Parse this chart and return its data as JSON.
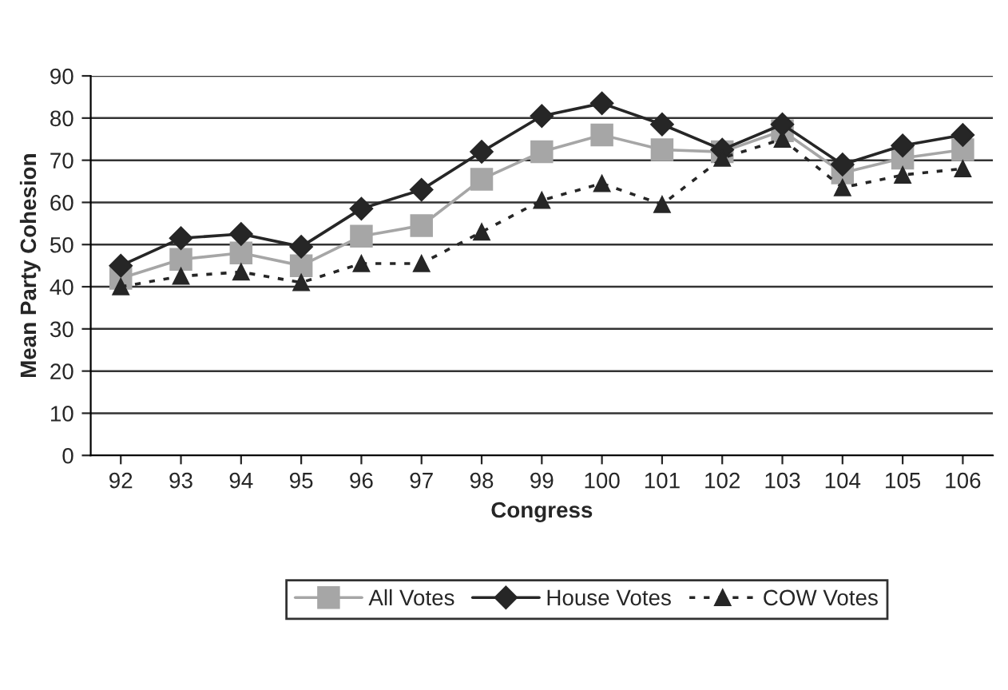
{
  "chart_data": {
    "type": "line",
    "xlabel": "Congress",
    "ylabel": "Mean Party Cohesion",
    "categories": [
      "92",
      "93",
      "94",
      "95",
      "96",
      "97",
      "98",
      "99",
      "100",
      "101",
      "102",
      "103",
      "104",
      "105",
      "106"
    ],
    "series": [
      {
        "name": "All Votes",
        "color": "#a6a6a6",
        "marker": "square",
        "line_style": "solid",
        "values": [
          42,
          46.5,
          48,
          45,
          52,
          54.5,
          65.5,
          72,
          76,
          72.5,
          72,
          77,
          67,
          70.5,
          72.5
        ]
      },
      {
        "name": "House Votes",
        "color": "#262626",
        "marker": "diamond",
        "line_style": "solid",
        "values": [
          45,
          51.5,
          52.5,
          49.5,
          58.5,
          63,
          72,
          80.5,
          83.5,
          78.5,
          72.5,
          78.5,
          69,
          73.5,
          76
        ]
      },
      {
        "name": "COW Votes",
        "color": "#262626",
        "marker": "triangle",
        "line_style": "dotted",
        "values": [
          40,
          42.5,
          43.5,
          41,
          45.5,
          45.5,
          53,
          60.5,
          64.5,
          59.5,
          70.5,
          75,
          63.5,
          66.5,
          68
        ]
      }
    ],
    "ylim": [
      0,
      90
    ],
    "yticks": [
      0,
      10,
      20,
      30,
      40,
      50,
      60,
      70,
      80,
      90
    ],
    "grid": "y",
    "legend": "bottom"
  }
}
